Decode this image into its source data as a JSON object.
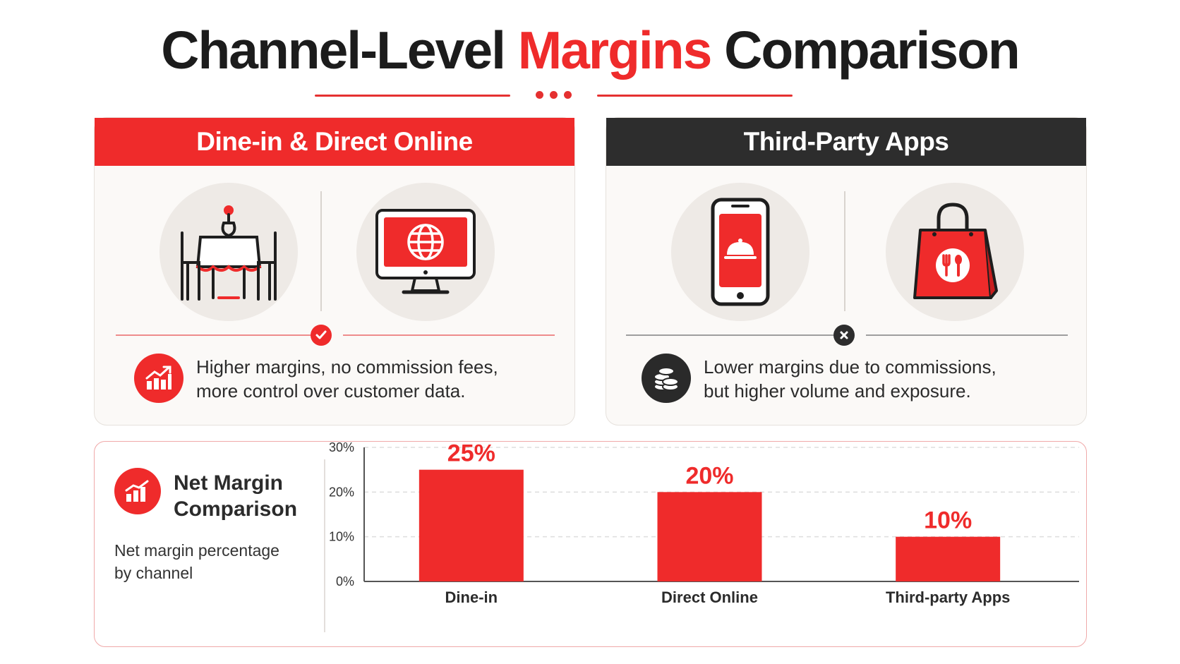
{
  "header": {
    "title_part1": "Channel-Level ",
    "title_highlight": "Margins",
    "title_part2": " Comparison"
  },
  "colors": {
    "accent": "#ef2b2b",
    "dark": "#2d2d2d"
  },
  "cards": [
    {
      "title": "Dine-in & Direct Online",
      "icons": [
        "dining-table-icon",
        "monitor-globe-icon"
      ],
      "status": "check-icon",
      "badge_icon": "growth-chart-icon",
      "description_line1": "Higher margins, no commission fees,",
      "description_line2": "more control over customer data."
    },
    {
      "title": "Third-Party Apps",
      "icons": [
        "phone-cloche-icon",
        "shopping-bag-icon"
      ],
      "status": "x-icon",
      "badge_icon": "coins-icon",
      "description_line1": "Lower margins due to commissions,",
      "description_line2": "but higher volume and exposure."
    }
  ],
  "panel": {
    "title_line1": "Net Margin",
    "title_line2": "Comparison",
    "subtitle_line1": "Net margin percentage",
    "subtitle_line2": "by channel"
  },
  "chart_data": {
    "type": "bar",
    "categories": [
      "Dine-in",
      "Direct Online",
      "Third-party Apps"
    ],
    "values": [
      25,
      20,
      10
    ],
    "data_labels": [
      "25%",
      "20%",
      "10%"
    ],
    "yticks": [
      "0%",
      "10%",
      "20%",
      "30%"
    ],
    "ylim": [
      0,
      30
    ],
    "title": "",
    "xlabel": "",
    "ylabel": "",
    "grid": true,
    "color": "#ef2b2b"
  }
}
